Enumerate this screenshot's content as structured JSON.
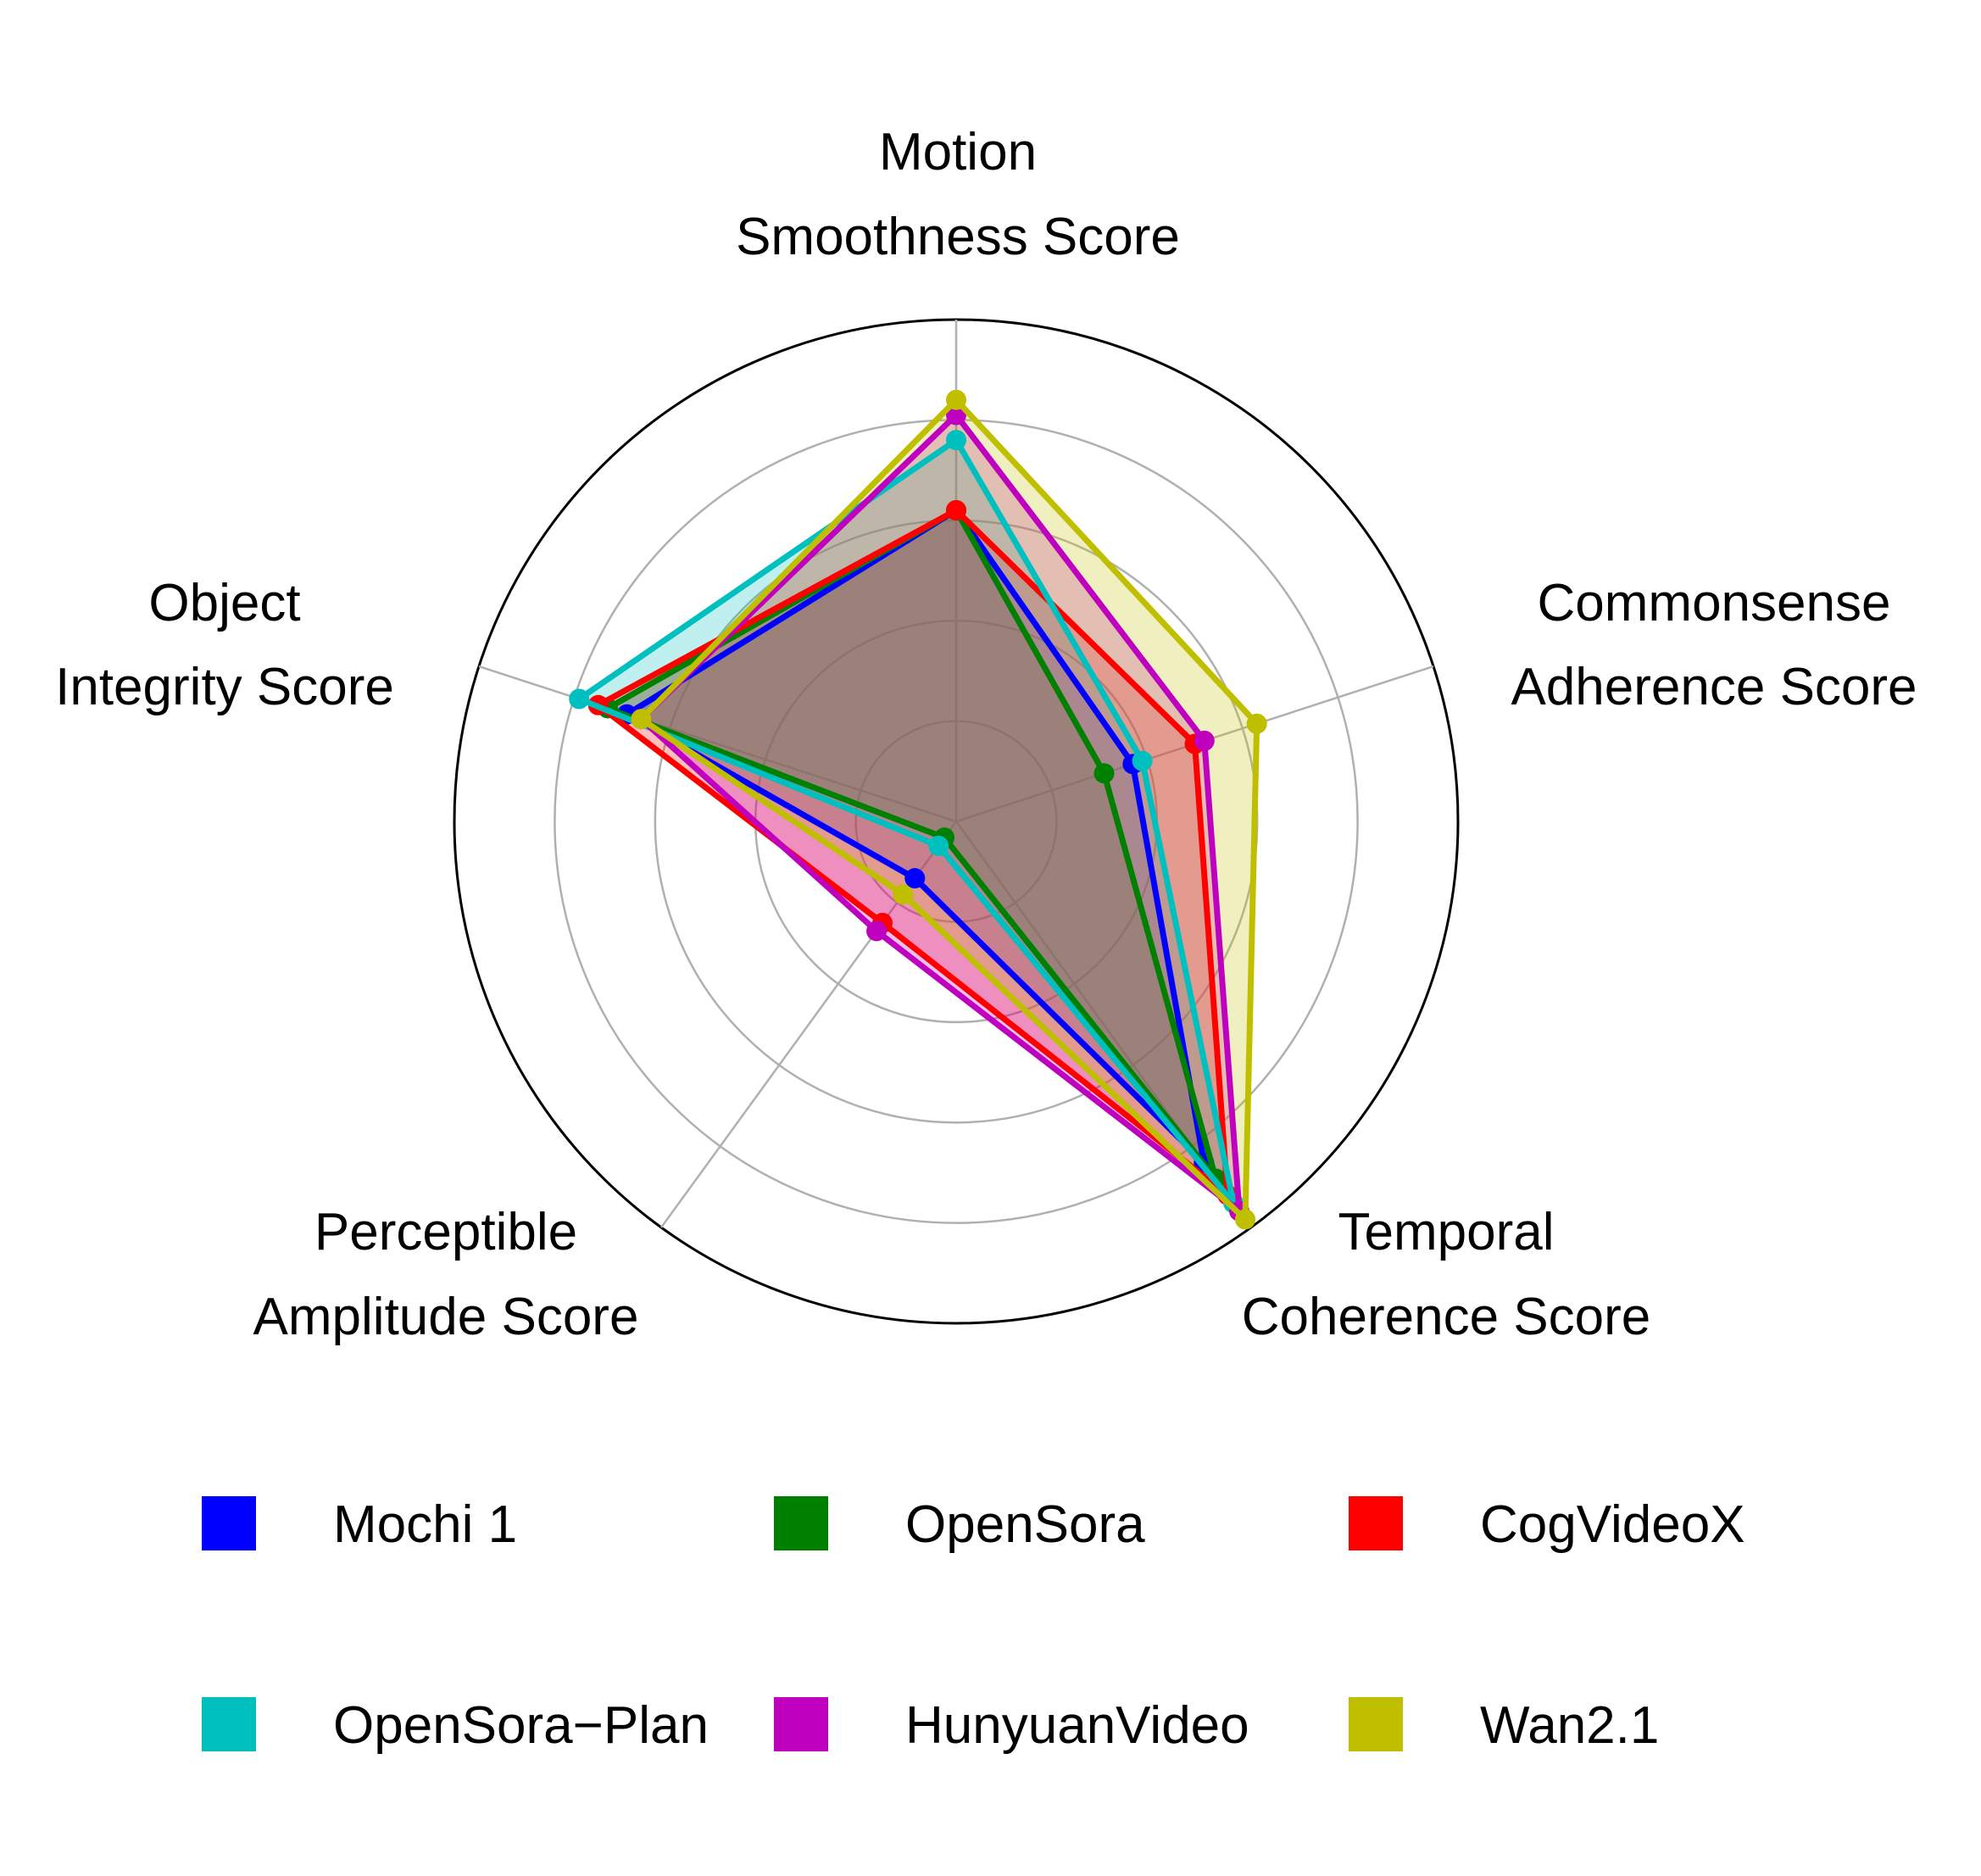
{
  "chart_data": {
    "type": "radar",
    "axes": [
      [
        "Motion",
        "Smoothness Score"
      ],
      [
        "Commonsense",
        "Adherence Score"
      ],
      [
        "Temporal",
        "Coherence Score"
      ],
      [
        "Perceptible",
        "Amplitude Score"
      ],
      [
        "Object",
        "Integrity Score"
      ]
    ],
    "rlim": [
      0,
      1
    ],
    "rings": [
      0.2,
      0.4,
      0.6,
      0.8,
      1.0
    ],
    "grid": true,
    "legend_position": "bottom",
    "series": [
      {
        "name": "Mochi 1",
        "color": "#0000ff",
        "values": [
          0.62,
          0.37,
          0.84,
          0.14,
          0.69
        ]
      },
      {
        "name": "OpenSora",
        "color": "#008000",
        "values": [
          0.62,
          0.31,
          0.88,
          0.04,
          0.73
        ]
      },
      {
        "name": "CogVideoX",
        "color": "#ff0000",
        "values": [
          0.62,
          0.5,
          0.92,
          0.25,
          0.75
        ]
      },
      {
        "name": "OpenSora−Plan",
        "color": "#00bfbf",
        "values": [
          0.76,
          0.39,
          0.94,
          0.06,
          0.79
        ]
      },
      {
        "name": "HunyuanVideo",
        "color": "#bf00bf",
        "values": [
          0.81,
          0.52,
          0.96,
          0.27,
          0.66
        ]
      },
      {
        "name": "Wan2.1",
        "color": "#bfbf00",
        "values": [
          0.84,
          0.63,
          0.98,
          0.18,
          0.66
        ]
      }
    ]
  }
}
